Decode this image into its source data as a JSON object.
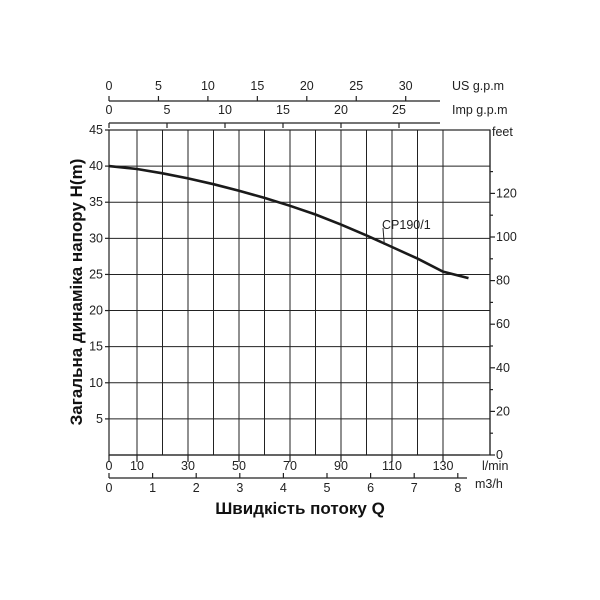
{
  "chart_data": {
    "type": "line",
    "title": "",
    "xlabel": "Швидкість потоку Q",
    "ylabel": "Загальна динаміка напору H(m)",
    "ylim": [
      0,
      45
    ],
    "xlim_lmin": [
      0,
      145
    ],
    "grid": true,
    "legend": "none",
    "series": [
      {
        "name": "CP190/1",
        "x": [
          0,
          10,
          20,
          30,
          40,
          50,
          60,
          70,
          80,
          90,
          100,
          110,
          120,
          130,
          140
        ],
        "y": [
          40.0,
          39.6,
          39.0,
          38.3,
          37.5,
          36.6,
          35.6,
          34.5,
          33.3,
          31.9,
          30.4,
          28.8,
          27.2,
          25.4,
          24.5
        ],
        "label": "CP190/1"
      }
    ],
    "axes": {
      "left": {
        "ticks": [
          "5",
          "10",
          "15",
          "20",
          "25",
          "30",
          "35",
          "40",
          "45"
        ]
      },
      "right": {
        "unit": "feet",
        "ticks": [
          "0",
          "20",
          "40",
          "60",
          "80",
          "100",
          "120"
        ]
      },
      "bottom_lmin": {
        "unit": "l/min",
        "ticks": [
          "0",
          "10",
          "30",
          "50",
          "70",
          "90",
          "110",
          "130"
        ]
      },
      "bottom_m3h": {
        "unit": "m3/h",
        "ticks": [
          "0",
          "1",
          "2",
          "3",
          "4",
          "5",
          "6",
          "7",
          "8"
        ]
      },
      "top_usgpm": {
        "unit": "US g.p.m",
        "ticks": [
          "0",
          "5",
          "10",
          "15",
          "20",
          "25",
          "30"
        ]
      },
      "top_impgpm": {
        "unit": "Imp g.p.m",
        "ticks": [
          "0",
          "5",
          "10",
          "15",
          "20",
          "25"
        ]
      }
    }
  }
}
